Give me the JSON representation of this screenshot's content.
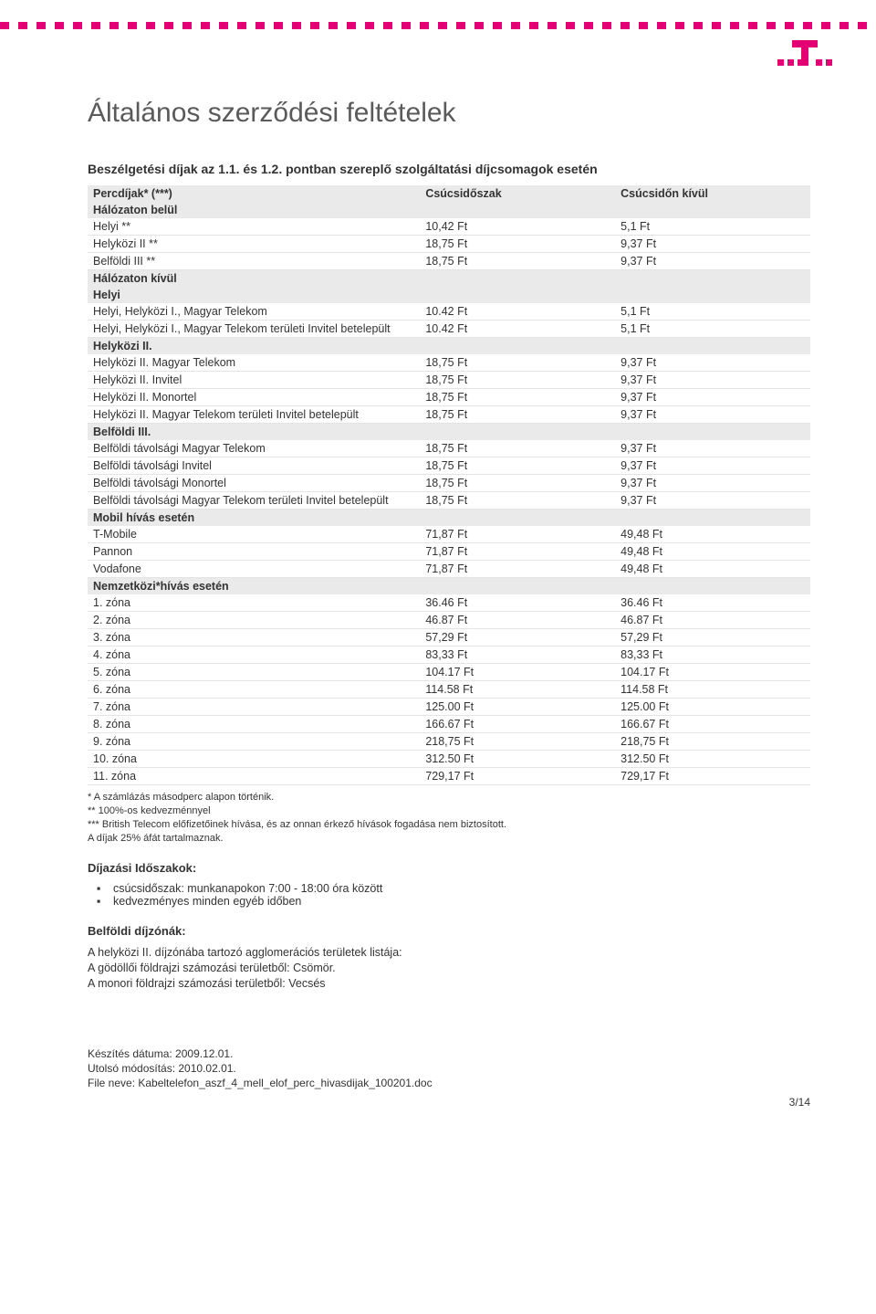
{
  "brand_color": "#e20074",
  "title": "Általános szerződési feltételek",
  "subtitle": "Beszélgetési díjak az 1.1. és 1.2. pontban szereplő szolgáltatási díjcsomagok esetén",
  "table": {
    "header": {
      "c0": "Percdíjak* (***)",
      "c1": "Csúcsidőszak",
      "c2": "Csúcsidőn kívül"
    },
    "sections": [
      {
        "label": "Hálózaton belül",
        "rows": [
          {
            "c0": "Helyi **",
            "c1": "10,42 Ft",
            "c2": "5,1 Ft"
          },
          {
            "c0": "Helyközi II **",
            "c1": "18,75 Ft",
            "c2": "9,37 Ft"
          },
          {
            "c0": "Belföldi III **",
            "c1": "18,75 Ft",
            "c2": "9,37 Ft"
          }
        ]
      },
      {
        "label": "Hálózaton kívül",
        "rows": []
      },
      {
        "label": "Helyi",
        "rows": [
          {
            "c0": "Helyi, Helyközi I., Magyar Telekom",
            "c1": "10.42 Ft",
            "c2": "5,1 Ft"
          },
          {
            "c0": "Helyi, Helyközi I., Magyar Telekom területi Invitel betelepült",
            "c1": "10.42 Ft",
            "c2": "5,1 Ft"
          }
        ]
      },
      {
        "label": "Helyközi II.",
        "rows": [
          {
            "c0": "Helyközi II. Magyar Telekom",
            "c1": "18,75 Ft",
            "c2": "9,37 Ft"
          },
          {
            "c0": "Helyközi II. Invitel",
            "c1": "18,75 Ft",
            "c2": "9,37 Ft"
          },
          {
            "c0": "Helyközi II. Monortel",
            "c1": "18,75 Ft",
            "c2": "9,37 Ft"
          },
          {
            "c0": "Helyközi II. Magyar Telekom területi Invitel betelepült",
            "c1": "18,75 Ft",
            "c2": "9,37 Ft"
          }
        ]
      },
      {
        "label": "Belföldi III.",
        "rows": [
          {
            "c0": "Belföldi távolsági Magyar Telekom",
            "c1": "18,75 Ft",
            "c2": "9,37 Ft"
          },
          {
            "c0": "Belföldi távolsági Invitel",
            "c1": "18,75 Ft",
            "c2": "9,37 Ft"
          },
          {
            "c0": "Belföldi távolsági Monortel",
            "c1": "18,75 Ft",
            "c2": "9,37 Ft"
          },
          {
            "c0": "Belföldi távolsági Magyar Telekom területi Invitel betelepült",
            "c1": "18,75 Ft",
            "c2": "9,37 Ft"
          }
        ]
      },
      {
        "label": "Mobil hívás esetén",
        "rows": [
          {
            "c0": "T-Mobile",
            "c1": "71,87 Ft",
            "c2": "49,48 Ft"
          },
          {
            "c0": "Pannon",
            "c1": "71,87 Ft",
            "c2": "49,48 Ft"
          },
          {
            "c0": "Vodafone",
            "c1": "71,87 Ft",
            "c2": "49,48 Ft"
          }
        ]
      },
      {
        "label": "Nemzetközi*hívás esetén",
        "rows": [
          {
            "c0": "1. zóna",
            "c1": "36.46 Ft",
            "c2": "36.46 Ft"
          },
          {
            "c0": "2. zóna",
            "c1": "46.87 Ft",
            "c2": "46.87 Ft"
          },
          {
            "c0": "3. zóna",
            "c1": "57,29 Ft",
            "c2": "57,29 Ft"
          },
          {
            "c0": "4. zóna",
            "c1": "83,33 Ft",
            "c2": "83,33 Ft"
          },
          {
            "c0": "5. zóna",
            "c1": "104.17 Ft",
            "c2": "104.17 Ft"
          },
          {
            "c0": "6. zóna",
            "c1": "114.58 Ft",
            "c2": "114.58 Ft"
          },
          {
            "c0": "7. zóna",
            "c1": "125.00 Ft",
            "c2": "125.00 Ft"
          },
          {
            "c0": "8. zóna",
            "c1": "166.67 Ft",
            "c2": "166.67 Ft"
          },
          {
            "c0": "9. zóna",
            "c1": "218,75 Ft",
            "c2": "218,75 Ft"
          },
          {
            "c0": "10. zóna",
            "c1": "312.50 Ft",
            "c2": "312.50 Ft"
          },
          {
            "c0": "11. zóna",
            "c1": "729,17 Ft",
            "c2": "729,17 Ft"
          }
        ]
      }
    ]
  },
  "footnotes": [
    "* A számlázás másodperc alapon történik.",
    "** 100%-os kedvezménnyel",
    "*** British Telecom előfizetőinek hívása, és az onnan érkező hívások fogadása nem biztosított.",
    "A díjak 25% áfát tartalmaznak."
  ],
  "periods": {
    "heading": "Díjazási Időszakok:",
    "items": [
      "csúcsidőszak: munkanapokon 7:00 - 18:00 óra között",
      "kedvezményes minden egyéb időben"
    ]
  },
  "zones": {
    "heading": "Belföldi díjzónák:",
    "lines": [
      "A helyközi II. díjzónába tartozó agglomerációs területek listája:",
      "A gödöllői földrajzi számozási területből: Csömör.",
      "A monori földrajzi számozási területből: Vecsés"
    ]
  },
  "footer": {
    "l1": "Készítés dátuma: 2009.12.01.",
    "l2": "Utolsó módosítás: 2010.02.01.",
    "l3": "File neve: Kabeltelefon_aszf_4_mell_elof_perc_hivasdijak_100201.doc",
    "page": "3/14"
  }
}
